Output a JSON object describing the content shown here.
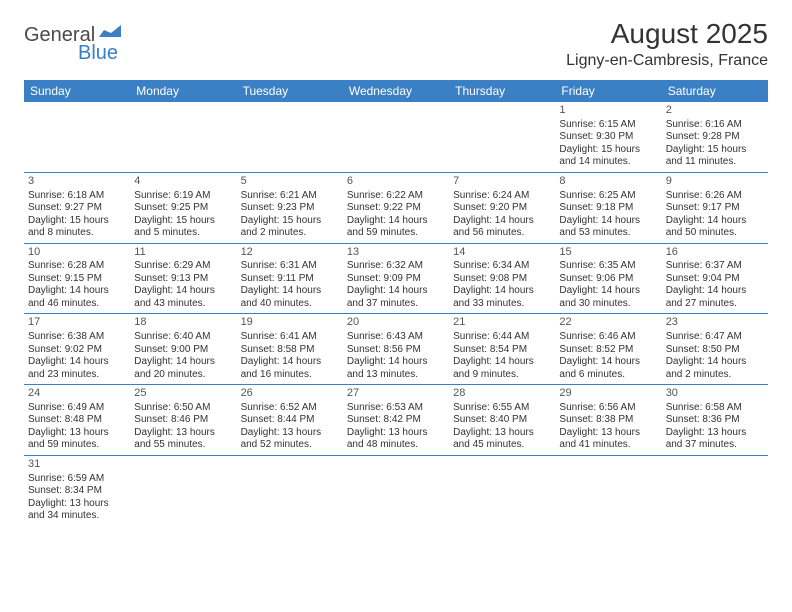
{
  "logo": {
    "text1": "General",
    "text2": "Blue"
  },
  "title": "August 2025",
  "location": "Ligny-en-Cambresis, France",
  "colors": {
    "header_bg": "#3b7fc4",
    "text": "#333333",
    "background": "#ffffff"
  },
  "day_headers": [
    "Sunday",
    "Monday",
    "Tuesday",
    "Wednesday",
    "Thursday",
    "Friday",
    "Saturday"
  ],
  "weeks": [
    [
      null,
      null,
      null,
      null,
      null,
      {
        "n": "1",
        "sr": "Sunrise: 6:15 AM",
        "ss": "Sunset: 9:30 PM",
        "dl": "Daylight: 15 hours and 14 minutes."
      },
      {
        "n": "2",
        "sr": "Sunrise: 6:16 AM",
        "ss": "Sunset: 9:28 PM",
        "dl": "Daylight: 15 hours and 11 minutes."
      }
    ],
    [
      {
        "n": "3",
        "sr": "Sunrise: 6:18 AM",
        "ss": "Sunset: 9:27 PM",
        "dl": "Daylight: 15 hours and 8 minutes."
      },
      {
        "n": "4",
        "sr": "Sunrise: 6:19 AM",
        "ss": "Sunset: 9:25 PM",
        "dl": "Daylight: 15 hours and 5 minutes."
      },
      {
        "n": "5",
        "sr": "Sunrise: 6:21 AM",
        "ss": "Sunset: 9:23 PM",
        "dl": "Daylight: 15 hours and 2 minutes."
      },
      {
        "n": "6",
        "sr": "Sunrise: 6:22 AM",
        "ss": "Sunset: 9:22 PM",
        "dl": "Daylight: 14 hours and 59 minutes."
      },
      {
        "n": "7",
        "sr": "Sunrise: 6:24 AM",
        "ss": "Sunset: 9:20 PM",
        "dl": "Daylight: 14 hours and 56 minutes."
      },
      {
        "n": "8",
        "sr": "Sunrise: 6:25 AM",
        "ss": "Sunset: 9:18 PM",
        "dl": "Daylight: 14 hours and 53 minutes."
      },
      {
        "n": "9",
        "sr": "Sunrise: 6:26 AM",
        "ss": "Sunset: 9:17 PM",
        "dl": "Daylight: 14 hours and 50 minutes."
      }
    ],
    [
      {
        "n": "10",
        "sr": "Sunrise: 6:28 AM",
        "ss": "Sunset: 9:15 PM",
        "dl": "Daylight: 14 hours and 46 minutes."
      },
      {
        "n": "11",
        "sr": "Sunrise: 6:29 AM",
        "ss": "Sunset: 9:13 PM",
        "dl": "Daylight: 14 hours and 43 minutes."
      },
      {
        "n": "12",
        "sr": "Sunrise: 6:31 AM",
        "ss": "Sunset: 9:11 PM",
        "dl": "Daylight: 14 hours and 40 minutes."
      },
      {
        "n": "13",
        "sr": "Sunrise: 6:32 AM",
        "ss": "Sunset: 9:09 PM",
        "dl": "Daylight: 14 hours and 37 minutes."
      },
      {
        "n": "14",
        "sr": "Sunrise: 6:34 AM",
        "ss": "Sunset: 9:08 PM",
        "dl": "Daylight: 14 hours and 33 minutes."
      },
      {
        "n": "15",
        "sr": "Sunrise: 6:35 AM",
        "ss": "Sunset: 9:06 PM",
        "dl": "Daylight: 14 hours and 30 minutes."
      },
      {
        "n": "16",
        "sr": "Sunrise: 6:37 AM",
        "ss": "Sunset: 9:04 PM",
        "dl": "Daylight: 14 hours and 27 minutes."
      }
    ],
    [
      {
        "n": "17",
        "sr": "Sunrise: 6:38 AM",
        "ss": "Sunset: 9:02 PM",
        "dl": "Daylight: 14 hours and 23 minutes."
      },
      {
        "n": "18",
        "sr": "Sunrise: 6:40 AM",
        "ss": "Sunset: 9:00 PM",
        "dl": "Daylight: 14 hours and 20 minutes."
      },
      {
        "n": "19",
        "sr": "Sunrise: 6:41 AM",
        "ss": "Sunset: 8:58 PM",
        "dl": "Daylight: 14 hours and 16 minutes."
      },
      {
        "n": "20",
        "sr": "Sunrise: 6:43 AM",
        "ss": "Sunset: 8:56 PM",
        "dl": "Daylight: 14 hours and 13 minutes."
      },
      {
        "n": "21",
        "sr": "Sunrise: 6:44 AM",
        "ss": "Sunset: 8:54 PM",
        "dl": "Daylight: 14 hours and 9 minutes."
      },
      {
        "n": "22",
        "sr": "Sunrise: 6:46 AM",
        "ss": "Sunset: 8:52 PM",
        "dl": "Daylight: 14 hours and 6 minutes."
      },
      {
        "n": "23",
        "sr": "Sunrise: 6:47 AM",
        "ss": "Sunset: 8:50 PM",
        "dl": "Daylight: 14 hours and 2 minutes."
      }
    ],
    [
      {
        "n": "24",
        "sr": "Sunrise: 6:49 AM",
        "ss": "Sunset: 8:48 PM",
        "dl": "Daylight: 13 hours and 59 minutes."
      },
      {
        "n": "25",
        "sr": "Sunrise: 6:50 AM",
        "ss": "Sunset: 8:46 PM",
        "dl": "Daylight: 13 hours and 55 minutes."
      },
      {
        "n": "26",
        "sr": "Sunrise: 6:52 AM",
        "ss": "Sunset: 8:44 PM",
        "dl": "Daylight: 13 hours and 52 minutes."
      },
      {
        "n": "27",
        "sr": "Sunrise: 6:53 AM",
        "ss": "Sunset: 8:42 PM",
        "dl": "Daylight: 13 hours and 48 minutes."
      },
      {
        "n": "28",
        "sr": "Sunrise: 6:55 AM",
        "ss": "Sunset: 8:40 PM",
        "dl": "Daylight: 13 hours and 45 minutes."
      },
      {
        "n": "29",
        "sr": "Sunrise: 6:56 AM",
        "ss": "Sunset: 8:38 PM",
        "dl": "Daylight: 13 hours and 41 minutes."
      },
      {
        "n": "30",
        "sr": "Sunrise: 6:58 AM",
        "ss": "Sunset: 8:36 PM",
        "dl": "Daylight: 13 hours and 37 minutes."
      }
    ],
    [
      {
        "n": "31",
        "sr": "Sunrise: 6:59 AM",
        "ss": "Sunset: 8:34 PM",
        "dl": "Daylight: 13 hours and 34 minutes."
      },
      null,
      null,
      null,
      null,
      null,
      null
    ]
  ]
}
